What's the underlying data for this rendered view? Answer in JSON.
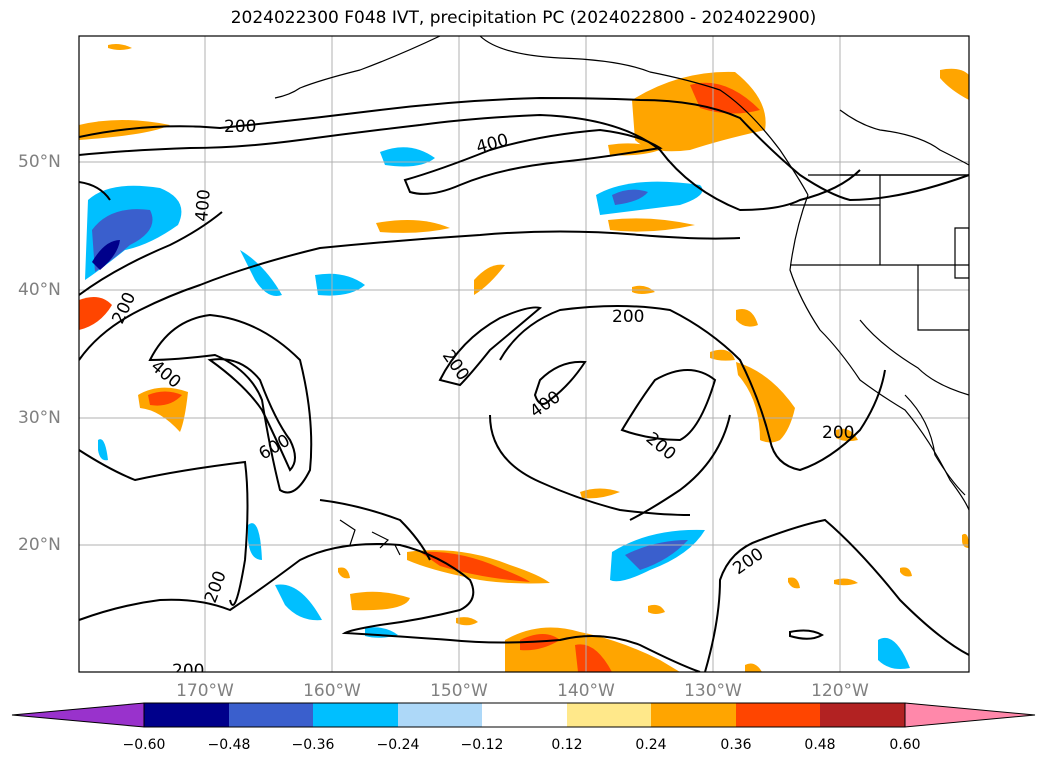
{
  "title": "2024022300 F048 IVT, precipitation PC (2024022800 - 2024022900)",
  "lat_labels": [
    "50°N",
    "40°N",
    "30°N",
    "20°N"
  ],
  "lon_labels": [
    "170°W",
    "160°W",
    "150°W",
    "140°W",
    "130°W",
    "120°W"
  ],
  "contour_labels": [
    "200",
    "400",
    "600"
  ],
  "colorbar": {
    "ticks": [
      "−0.60",
      "−0.48",
      "−0.36",
      "−0.24",
      "−0.12",
      "0.12",
      "0.24",
      "0.36",
      "0.48",
      "0.60"
    ],
    "colors": [
      "#9932cc",
      "#00008b",
      "#3a5fcd",
      "#00bfff",
      "#add8f8",
      "#ffffff",
      "#ffe88a",
      "#ffa500",
      "#ff4500",
      "#b22222",
      "#ff88aa"
    ]
  },
  "palette": {
    "neg_strong": "#00008b",
    "neg_mid": "#3a5fcd",
    "neg": "#00bfff",
    "neg_light": "#add8f8",
    "pos_light": "#ffe88a",
    "pos": "#ffa500",
    "pos_mid": "#ff4500",
    "pos_strong": "#b22222",
    "grid": "#b0b0b0",
    "contour": "#000000",
    "axis_label": "#808080"
  }
}
